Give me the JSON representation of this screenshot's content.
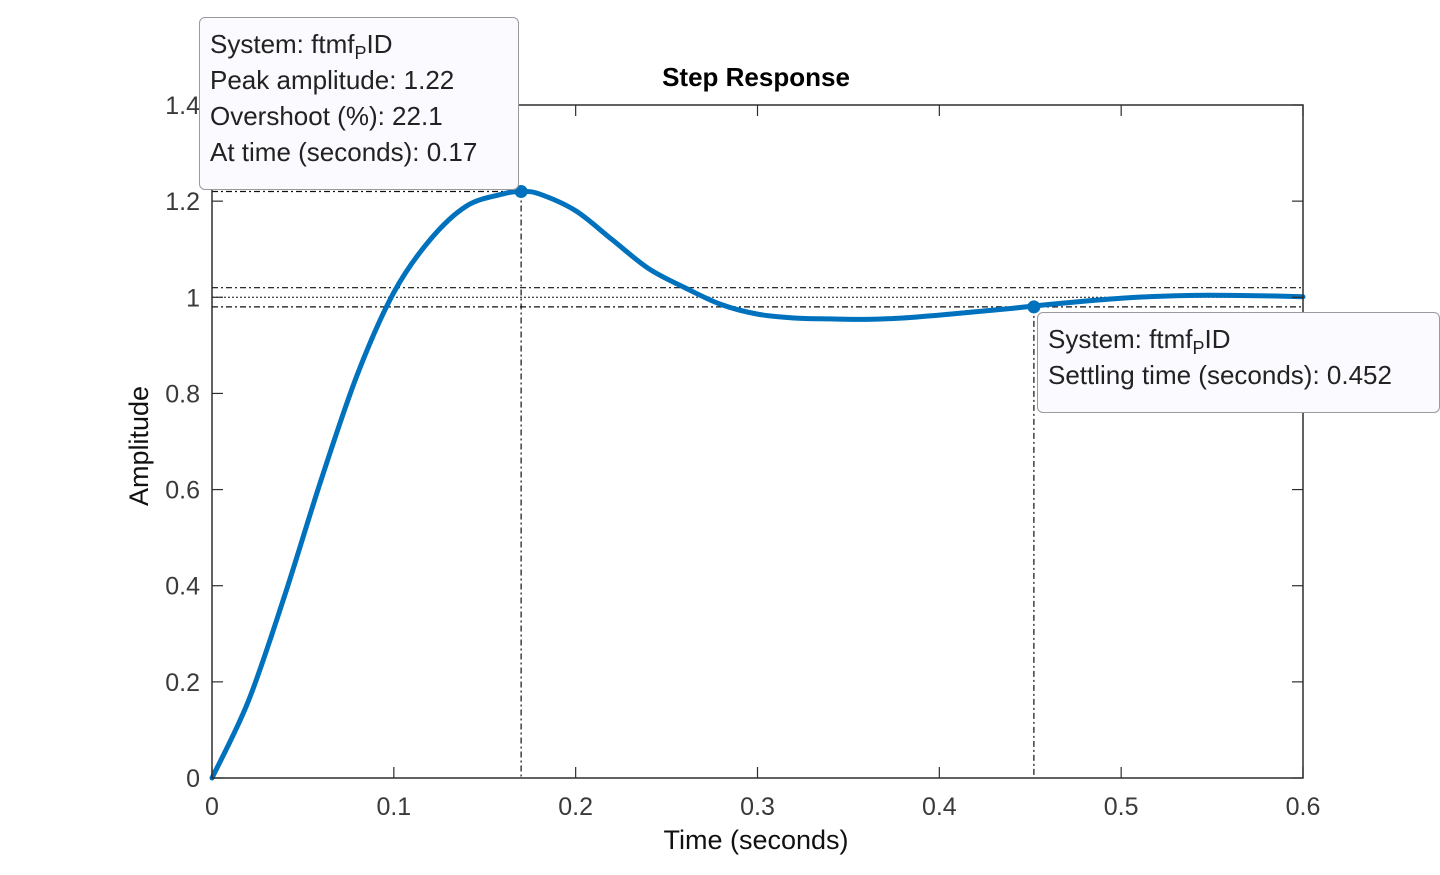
{
  "chart_data": {
    "type": "line",
    "title": "Step Response",
    "xlabel": "Time (seconds)",
    "ylabel": "Amplitude",
    "xlim": [
      0,
      0.6
    ],
    "ylim": [
      0,
      1.4
    ],
    "x_ticks": [
      "0",
      "0.1",
      "0.2",
      "0.3",
      "0.4",
      "0.5",
      "0.6"
    ],
    "y_ticks": [
      "0",
      "0.2",
      "0.4",
      "0.6",
      "0.8",
      "1",
      "1.2",
      "1.4"
    ],
    "grid": false,
    "series": [
      {
        "color": "#0072bd",
        "x": [
          0,
          0.02,
          0.04,
          0.06,
          0.08,
          0.1,
          0.12,
          0.14,
          0.16,
          0.17,
          0.18,
          0.2,
          0.22,
          0.24,
          0.26,
          0.28,
          0.3,
          0.32,
          0.34,
          0.36,
          0.38,
          0.4,
          0.42,
          0.44,
          0.46,
          0.48,
          0.5,
          0.52,
          0.54,
          0.56,
          0.58,
          0.6
        ],
        "y": [
          0,
          0.16,
          0.38,
          0.62,
          0.84,
          1.01,
          1.12,
          1.19,
          1.215,
          1.22,
          1.215,
          1.18,
          1.12,
          1.06,
          1.02,
          0.985,
          0.965,
          0.957,
          0.955,
          0.954,
          0.957,
          0.963,
          0.97,
          0.977,
          0.985,
          0.992,
          0.998,
          1.002,
          1.004,
          1.004,
          1.003,
          1.001
        ]
      }
    ],
    "settling_band": [
      0.98,
      1.02
    ],
    "final_value": 1,
    "markers": [
      {
        "x": 0.17,
        "y": 1.22
      },
      {
        "x": 0.452,
        "y": 0.98
      }
    ]
  },
  "tooltips": {
    "peak": {
      "system_prefix": "System: ftmf",
      "system_sub": "P",
      "system_suffix": "ID",
      "peak_line": "Peak amplitude: 1.22",
      "overshoot_line": "Overshoot (%): 22.1",
      "time_line": "At time (seconds): 0.17"
    },
    "settling": {
      "system_prefix": "System: ftmf",
      "system_sub": "P",
      "system_suffix": "ID",
      "settling_line": "Settling time (seconds): 0.452"
    }
  }
}
